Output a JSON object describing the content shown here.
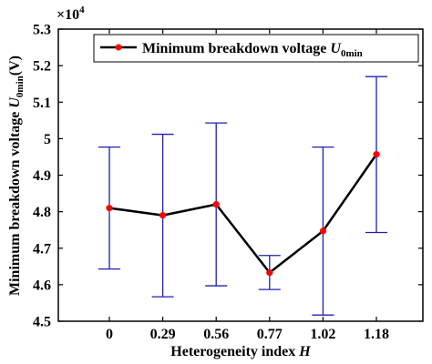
{
  "chart_data": {
    "type": "line",
    "xlabel": "Heterogeneity index",
    "xlabel_var": "H",
    "ylabel": "Minimum breakdown voltage",
    "ylabel_var": "U",
    "ylabel_sub": "0min",
    "ylabel_unit": "(V)",
    "exponent_prefix": "×10",
    "exponent_power": "4",
    "categories": [
      "0",
      "0.29",
      "0.56",
      "0.77",
      "1.02",
      "1.18"
    ],
    "y_ticks": [
      "4.5",
      "4.6",
      "4.7",
      "4.8",
      "4.9",
      "5",
      "5.1",
      "5.2",
      "5.3"
    ],
    "ylim": [
      4.5,
      5.3
    ],
    "grid": false,
    "legend_position": "top-right",
    "series": [
      {
        "name": "Minimum breakdown voltage",
        "name_var": "U",
        "name_sub": "0min",
        "values": [
          4.81,
          4.79,
          4.82,
          4.633,
          4.747,
          4.957
        ],
        "error_low": [
          4.643,
          4.567,
          4.597,
          4.587,
          4.517,
          4.743
        ],
        "error_high": [
          4.977,
          5.012,
          5.043,
          4.68,
          4.977,
          5.17
        ]
      }
    ],
    "colors": {
      "line": "#000000",
      "marker": "#ff0000",
      "errorbar": "#1f1fb0",
      "axis": "#000000"
    }
  }
}
